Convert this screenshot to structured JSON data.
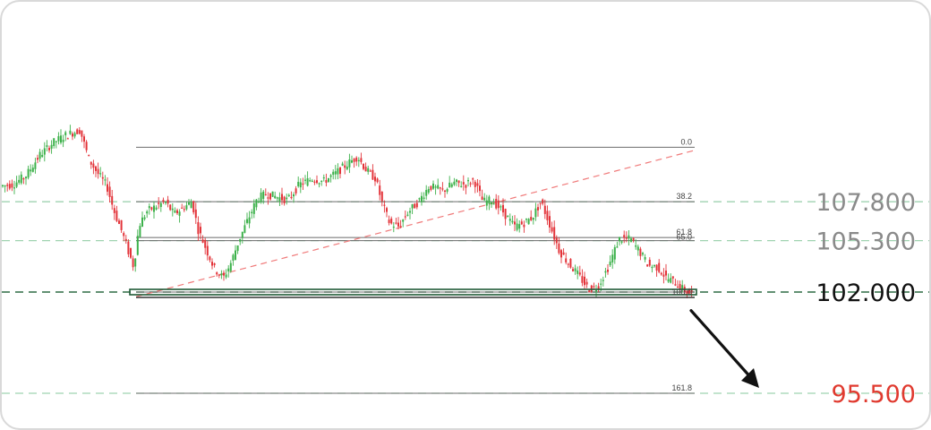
{
  "colors": {
    "up": "#3cb14a",
    "down": "#e3343a",
    "fib_line": "#6b6b6b",
    "level_dash": "#9fd3b0",
    "support_dash": "#2e6b45",
    "trend_dash": "#f07a7a",
    "arrow": "#111111",
    "target_text": "#e03a2f",
    "level_text": "#8a8a8a",
    "support_text": "#111111"
  },
  "chart_data": {
    "type": "candlestick",
    "price_levels": [
      {
        "value": "107.800",
        "price": 107.8,
        "style": "dashed",
        "text_color": "#8a8a8a"
      },
      {
        "value": "105.300",
        "price": 105.3,
        "style": "dashed",
        "text_color": "#8a8a8a"
      },
      {
        "value": "102.000",
        "price": 102.0,
        "style": "dashed-bold",
        "text_color": "#111111"
      },
      {
        "value": "95.500",
        "price": 95.5,
        "style": "dashed",
        "text_color": "#e03a2f"
      }
    ],
    "fibonacci_levels": [
      {
        "label": "0.0",
        "price": 111.3
      },
      {
        "label": "38.2",
        "price": 107.8
      },
      {
        "label": "61.8",
        "price": 105.5
      },
      {
        "label": "65.0",
        "price": 105.3
      },
      {
        "label": "100.0",
        "price": 102.0
      },
      {
        "label": "161.8",
        "price": 95.5
      }
    ],
    "trendline": {
      "from_price": 101.7,
      "to_price": 111.1,
      "style": "dashed"
    },
    "projection_arrow": {
      "from_price": 101.5,
      "to_price": 95.5,
      "meaning": "bearish target"
    },
    "series_path_prices": [
      [
        0,
        108.8
      ],
      [
        15,
        108.9
      ],
      [
        30,
        109.5
      ],
      [
        45,
        110.8
      ],
      [
        60,
        111.6
      ],
      [
        75,
        112.1
      ],
      [
        90,
        112.4
      ],
      [
        100,
        110.5
      ],
      [
        110,
        109.6
      ],
      [
        120,
        108.8
      ],
      [
        128,
        107.2
      ],
      [
        136,
        106.0
      ],
      [
        144,
        104.6
      ],
      [
        150,
        103.6
      ],
      [
        156,
        106.3
      ],
      [
        165,
        107.2
      ],
      [
        175,
        107.5
      ],
      [
        185,
        107.8
      ],
      [
        195,
        107.0
      ],
      [
        205,
        107.4
      ],
      [
        215,
        107.8
      ],
      [
        222,
        106.0
      ],
      [
        232,
        104.6
      ],
      [
        240,
        103.5
      ],
      [
        250,
        102.9
      ],
      [
        258,
        103.8
      ],
      [
        268,
        105.4
      ],
      [
        278,
        106.7
      ],
      [
        288,
        108.0
      ],
      [
        298,
        108.3
      ],
      [
        310,
        108.1
      ],
      [
        322,
        107.9
      ],
      [
        335,
        108.9
      ],
      [
        350,
        109.3
      ],
      [
        362,
        109.1
      ],
      [
        375,
        109.6
      ],
      [
        388,
        110.2
      ],
      [
        400,
        110.7
      ],
      [
        410,
        109.8
      ],
      [
        420,
        109.3
      ],
      [
        428,
        107.6
      ],
      [
        436,
        106.4
      ],
      [
        446,
        106.2
      ],
      [
        456,
        107.1
      ],
      [
        468,
        107.8
      ],
      [
        480,
        108.8
      ],
      [
        495,
        108.5
      ],
      [
        508,
        109.0
      ],
      [
        520,
        108.9
      ],
      [
        530,
        109.2
      ],
      [
        540,
        107.8
      ],
      [
        550,
        107.9
      ],
      [
        562,
        107.2
      ],
      [
        575,
        106.2
      ],
      [
        585,
        106.4
      ],
      [
        595,
        106.8
      ],
      [
        605,
        107.8
      ],
      [
        615,
        106.3
      ],
      [
        625,
        104.7
      ],
      [
        635,
        103.9
      ],
      [
        645,
        103.2
      ],
      [
        658,
        102.2
      ],
      [
        668,
        102.3
      ],
      [
        680,
        103.6
      ],
      [
        692,
        105.4
      ],
      [
        705,
        105.4
      ],
      [
        715,
        104.6
      ],
      [
        725,
        103.7
      ],
      [
        735,
        103.6
      ],
      [
        745,
        102.9
      ],
      [
        755,
        102.6
      ],
      [
        765,
        102.1
      ],
      [
        772,
        101.9
      ]
    ]
  }
}
